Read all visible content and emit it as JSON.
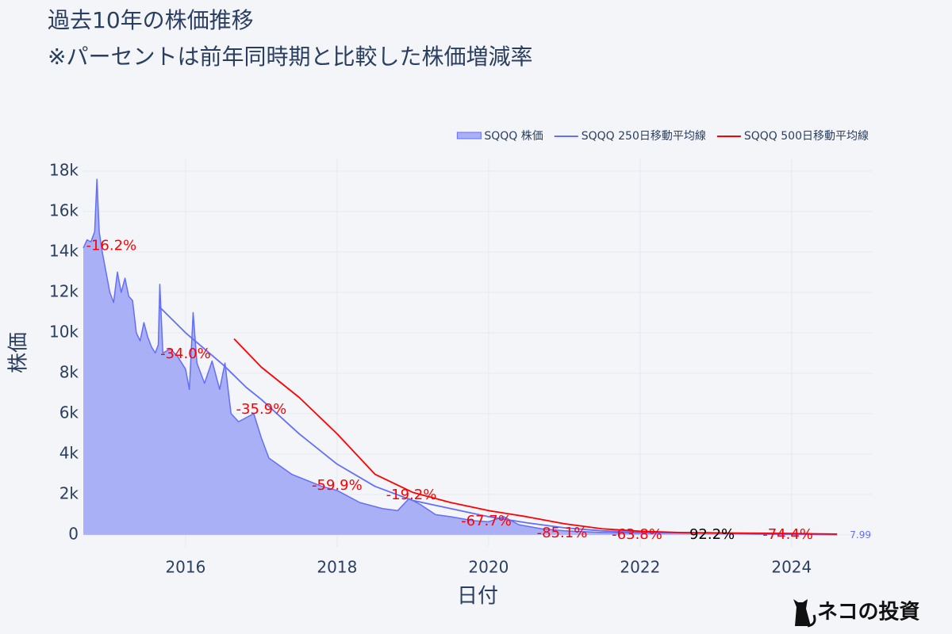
{
  "chart_data": {
    "type": "area",
    "title": "過去10年の株価推移",
    "subtitle": "※パーセントは前年同時期と比較した株価増減率",
    "x_label": "日付",
    "y_label": "株価",
    "xlim": [
      2014.65,
      2025.07
    ],
    "xticks": [
      2016,
      2018,
      2020,
      2022,
      2024
    ],
    "ylim": [
      -600,
      18600
    ],
    "yticks": [
      0,
      {
        "value": 2000,
        "label": "2k"
      },
      {
        "value": 4000,
        "label": "4k"
      },
      {
        "value": 6000,
        "label": "6k"
      },
      {
        "value": 8000,
        "label": "8k"
      },
      {
        "value": 10000,
        "label": "10k"
      },
      {
        "value": 12000,
        "label": "12k"
      },
      {
        "value": 14000,
        "label": "14k"
      },
      {
        "value": 16000,
        "label": "16k"
      },
      {
        "value": 18000,
        "label": "18k"
      }
    ],
    "grid": true,
    "legend": "top-right",
    "series": [
      {
        "name": "SQQQ 株価",
        "kind": "area",
        "color": "#636efa",
        "fill": "#aab0f5",
        "x": [
          2014.65,
          2014.7,
          2014.75,
          2014.8,
          2014.83,
          2014.86,
          2014.9,
          2014.95,
          2015.0,
          2015.05,
          2015.1,
          2015.15,
          2015.2,
          2015.25,
          2015.3,
          2015.35,
          2015.4,
          2015.45,
          2015.5,
          2015.55,
          2015.6,
          2015.64,
          2015.66,
          2015.7,
          2015.8,
          2015.9,
          2016.0,
          2016.05,
          2016.1,
          2016.15,
          2016.25,
          2016.35,
          2016.45,
          2016.52,
          2016.6,
          2016.7,
          2016.9,
          2017.0,
          2017.1,
          2017.4,
          2017.8,
          2018.0,
          2018.3,
          2018.6,
          2018.8,
          2018.95,
          2019.1,
          2019.3,
          2019.5,
          2019.8,
          2020.0,
          2020.2,
          2020.4,
          2020.7,
          2021.0,
          2021.5,
          2022.0,
          2022.5,
          2023.0,
          2023.5,
          2024.0,
          2024.3,
          2024.6
        ],
        "values": [
          14200,
          14600,
          14500,
          15000,
          17600,
          15000,
          14000,
          13000,
          12000,
          11500,
          13000,
          12000,
          12700,
          11800,
          11600,
          10000,
          9600,
          10500,
          9800,
          9300,
          9000,
          9400,
          12400,
          9000,
          9200,
          8800,
          8200,
          7200,
          11000,
          8500,
          7500,
          8600,
          7200,
          8500,
          6000,
          5600,
          6000,
          4800,
          3800,
          3000,
          2400,
          2200,
          1600,
          1300,
          1200,
          1800,
          1500,
          1000,
          900,
          700,
          650,
          900,
          500,
          300,
          200,
          120,
          90,
          100,
          80,
          40,
          20,
          12,
          7.99
        ],
        "end_label": "7.99"
      },
      {
        "name": "SQQQ 250日移動平均線",
        "kind": "line",
        "color": "#636efa",
        "x": [
          2015.65,
          2016.0,
          2016.5,
          2016.8,
          2017.0,
          2017.5,
          2018.0,
          2018.5,
          2019.0,
          2019.5,
          2020.0,
          2020.5,
          2021.0,
          2021.5,
          2022.0,
          2023.0,
          2024.0,
          2024.6
        ],
        "values": [
          11300,
          10000,
          8400,
          7300,
          6700,
          5000,
          3500,
          2400,
          1700,
          1300,
          900,
          600,
          350,
          200,
          120,
          90,
          50,
          20
        ]
      },
      {
        "name": "SQQQ 500日移動平均線",
        "kind": "line",
        "color": "#ff0000",
        "x": [
          2016.64,
          2017.0,
          2017.5,
          2018.0,
          2018.5,
          2019.0,
          2019.5,
          2020.0,
          2020.5,
          2021.0,
          2021.5,
          2022.0,
          2022.5,
          2023.0,
          2024.0,
          2024.6
        ],
        "values": [
          9700,
          8300,
          6800,
          5000,
          3000,
          2100,
          1600,
          1200,
          900,
          550,
          300,
          180,
          120,
          100,
          70,
          40
        ]
      }
    ],
    "annotations": [
      {
        "text": "-16.2%",
        "x": 2015.02,
        "y": 14300,
        "color": "#ff0000"
      },
      {
        "text": "-34.0%",
        "x": 2016.0,
        "y": 8940,
        "color": "#ff0000"
      },
      {
        "text": "-35.9%",
        "x": 2017.0,
        "y": 6200,
        "color": "#ff0000"
      },
      {
        "text": "-59.9%",
        "x": 2018.0,
        "y": 2430,
        "color": "#ff0000"
      },
      {
        "text": "-19.2%",
        "x": 2018.98,
        "y": 1960,
        "color": "#ff0000"
      },
      {
        "text": "-67.7%",
        "x": 2019.97,
        "y": 670,
        "color": "#ff0000"
      },
      {
        "text": "-85.1%",
        "x": 2020.97,
        "y": 80,
        "color": "#ff0000"
      },
      {
        "text": "-63.8%",
        "x": 2021.96,
        "y": 0,
        "color": "#ff0000"
      },
      {
        "text": "92.2%",
        "x": 2022.95,
        "y": 0,
        "color": "#000000"
      },
      {
        "text": "-74.4%",
        "x": 2023.95,
        "y": 0,
        "color": "#ff0000"
      }
    ]
  },
  "watermark": "ネコの投資"
}
